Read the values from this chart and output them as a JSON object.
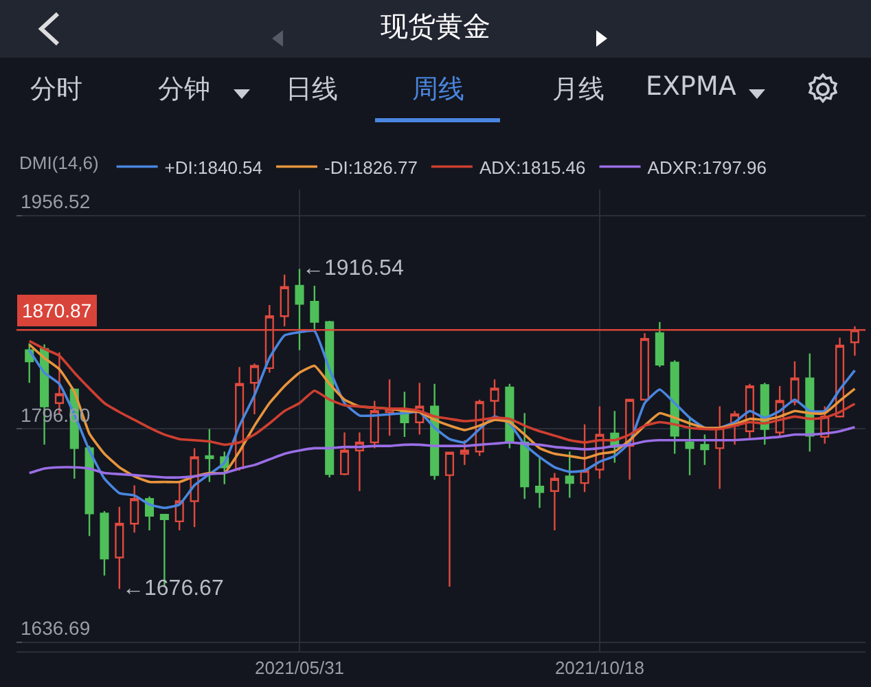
{
  "chart_data": {
    "type": "candlestick",
    "title": "现货黄金",
    "annotations": [
      "分时",
      "分钟",
      "日线",
      "周线",
      "月线",
      "EXPMA",
      {
        "text": "←1916.54",
        "x": "2021-05-31",
        "y": 1916.54
      },
      {
        "text": "←1676.67",
        "x": "2021-03-08",
        "y": 1676.67
      }
    ],
    "x": [
      "2021-01-25",
      "2021-02-01",
      "2021-02-08",
      "2021-02-15",
      "2021-02-22",
      "2021-03-01",
      "2021-03-08",
      "2021-03-15",
      "2021-03-22",
      "2021-03-29",
      "2021-04-05",
      "2021-04-12",
      "2021-04-19",
      "2021-04-26",
      "2021-05-03",
      "2021-05-10",
      "2021-05-17",
      "2021-05-24",
      "2021-05-31",
      "2021-06-07",
      "2021-06-14",
      "2021-06-21",
      "2021-06-28",
      "2021-07-05",
      "2021-07-12",
      "2021-07-19",
      "2021-07-26",
      "2021-08-02",
      "2021-08-09",
      "2021-08-16",
      "2021-08-23",
      "2021-08-30",
      "2021-09-06",
      "2021-09-13",
      "2021-09-20",
      "2021-09-27",
      "2021-10-04",
      "2021-10-11",
      "2021-10-18",
      "2021-10-25",
      "2021-11-01",
      "2021-11-08",
      "2021-11-15",
      "2021-11-22",
      "2021-11-29",
      "2021-12-06",
      "2021-12-13",
      "2021-12-20",
      "2021-12-27",
      "2022-01-03",
      "2022-01-10",
      "2022-01-17",
      "2022-01-24",
      "2022-01-31",
      "2022-02-07",
      "2022-02-14"
    ],
    "ohlc": [
      [
        1855.7,
        1860.8,
        1831.2,
        1847.3
      ],
      [
        1856.6,
        1860,
        1784.8,
        1813.5
      ],
      [
        1816.0,
        1854,
        1807.6,
        1822.8
      ],
      [
        1826.2,
        1827,
        1759.4,
        1782.2
      ],
      [
        1782.2,
        1784,
        1716.4,
        1733.3
      ],
      [
        1733.3,
        1735,
        1686.8,
        1699.5
      ],
      [
        1700.3,
        1738.3,
        1676.67,
        1725.6
      ],
      [
        1725.6,
        1754.4,
        1718.9,
        1744.2
      ],
      [
        1744.2,
        1746,
        1720.6,
        1731.6
      ],
      [
        1732.4,
        1733,
        1679.2,
        1729.0
      ],
      [
        1727.4,
        1756.9,
        1720.6,
        1742.5
      ],
      [
        1742.5,
        1782.2,
        1723.1,
        1775.5
      ],
      [
        1776.3,
        1796.6,
        1756.9,
        1774.6
      ],
      [
        1775.5,
        1779.7,
        1755.2,
        1767.9
      ],
      [
        1767.0,
        1843,
        1765.4,
        1830.4
      ],
      [
        1831.2,
        1845.6,
        1807.6,
        1843.9
      ],
      [
        1842.2,
        1889.5,
        1838.8,
        1881.1
      ],
      [
        1881.1,
        1912.3,
        1873.5,
        1903.0
      ],
      [
        1903.9,
        1916.54,
        1855.7,
        1890.4
      ],
      [
        1892.0,
        1903.9,
        1870.9,
        1876.8
      ],
      [
        1876.8,
        1877.7,
        1760.3,
        1762.8
      ],
      [
        1762.8,
        1794,
        1762,
        1780.5
      ],
      [
        1780.5,
        1794,
        1750.1,
        1786.5
      ],
      [
        1786.5,
        1817.7,
        1782.2,
        1810.1
      ],
      [
        1809.3,
        1833.8,
        1791.5,
        1811.8
      ],
      [
        1810.1,
        1824.5,
        1790.7,
        1801.6
      ],
      [
        1801.6,
        1831.2,
        1792.4,
        1813.5
      ],
      [
        1813.5,
        1830.4,
        1758.6,
        1762.0
      ],
      [
        1762.0,
        1779,
        1678.4,
        1778.9
      ],
      [
        1778.0,
        1788.2,
        1769.6,
        1780.5
      ],
      [
        1779.7,
        1818.6,
        1776.3,
        1816.9
      ],
      [
        1817.7,
        1833.8,
        1806.0,
        1827.0
      ],
      [
        1827.8,
        1830.4,
        1782.2,
        1786.5
      ],
      [
        1786.5,
        1808.5,
        1744.2,
        1753.5
      ],
      [
        1753.5,
        1775.5,
        1737.5,
        1749.3
      ],
      [
        1750.1,
        1763.6,
        1720.6,
        1759.4
      ],
      [
        1761.1,
        1779.7,
        1745.1,
        1756.1
      ],
      [
        1756.1,
        1800,
        1749.3,
        1765.4
      ],
      [
        1766.2,
        1813.5,
        1759.4,
        1792.4
      ],
      [
        1793.2,
        1810.1,
        1771.3,
        1783.1
      ],
      [
        1783.9,
        1819,
        1758.6,
        1818.6
      ],
      [
        1818.6,
        1868.4,
        1818,
        1864.2
      ],
      [
        1868.4,
        1876.8,
        1843,
        1844.8
      ],
      [
        1846.4,
        1848,
        1778.0,
        1791.5
      ],
      [
        1786.5,
        1806,
        1762.0,
        1782.2
      ],
      [
        1784.8,
        1792.4,
        1769.6,
        1781.4
      ],
      [
        1782.2,
        1813.5,
        1751.8,
        1797.5
      ],
      [
        1799.1,
        1810.1,
        1784.8,
        1807.6
      ],
      [
        1794.9,
        1830.4,
        1789.9,
        1828.7
      ],
      [
        1829.5,
        1831.2,
        1784.8,
        1796.6
      ],
      [
        1794,
        1828.7,
        1790.7,
        1817.7
      ],
      [
        1816.9,
        1847.3,
        1814.3,
        1834.6
      ],
      [
        1834.6,
        1853.2,
        1779.7,
        1791.5
      ],
      [
        1790.7,
        1813.5,
        1785.6,
        1806.0
      ],
      [
        1806.0,
        1865,
        1805.2,
        1859.1
      ],
      [
        1861.6,
        1873.5,
        1851.5,
        1870.87
      ]
    ],
    "series": [
      {
        "name": "+DI:1840.54",
        "type": "line",
        "color": "#4a86e0",
        "values": [
          1855.7,
          1838.8,
          1830.4,
          1807.6,
          1780.5,
          1759.4,
          1748.5,
          1746.8,
          1740.0,
          1737.5,
          1740.0,
          1754.4,
          1762.8,
          1771.3,
          1799.1,
          1821.9,
          1849.8,
          1866.7,
          1869.2,
          1870.1,
          1841.4,
          1816.0,
          1806.7,
          1806.7,
          1807.6,
          1808.4,
          1809.3,
          1797.5,
          1789.0,
          1786.5,
          1796.6,
          1805.9,
          1800.8,
          1784.8,
          1775.5,
          1767.9,
          1764.5,
          1765.4,
          1772.1,
          1776.3,
          1786.5,
          1816.0,
          1826.2,
          1816.0,
          1805.0,
          1797.5,
          1797.5,
          1801.7,
          1810.1,
          1805.0,
          1810.1,
          1818.6,
          1810.1,
          1810.1,
          1826.2,
          1840.54
        ]
      },
      {
        "name": "-DI:1826.77",
        "type": "line",
        "color": "#e8953c",
        "values": [
          1859.9,
          1849.8,
          1841.4,
          1824.5,
          1793.2,
          1778.0,
          1767.9,
          1761.1,
          1756.9,
          1756.9,
          1756.9,
          1761.1,
          1763.6,
          1763.6,
          1779.7,
          1799.1,
          1816.0,
          1828.7,
          1838.8,
          1843.9,
          1830.4,
          1818.6,
          1813.5,
          1812.6,
          1811.8,
          1810.1,
          1809.3,
          1803.4,
          1799.1,
          1795.8,
          1799.1,
          1803.4,
          1801.7,
          1792.4,
          1782.2,
          1778.0,
          1776.3,
          1774.6,
          1778.0,
          1779.7,
          1788.2,
          1799.1,
          1808.4,
          1805.0,
          1800.8,
          1797.5,
          1797.5,
          1800.0,
          1804.2,
          1803.4,
          1805.9,
          1810.1,
          1808.4,
          1808.4,
          1817.7,
          1826.77
        ]
      },
      {
        "name": "ADX:1815.46",
        "type": "line",
        "color": "#cf3f30",
        "values": [
          1862.5,
          1856.6,
          1851.5,
          1838.8,
          1827.0,
          1816.0,
          1809.3,
          1803.4,
          1797.5,
          1792.4,
          1789.0,
          1788.2,
          1787.3,
          1784.8,
          1786.5,
          1792.4,
          1800.8,
          1810.1,
          1816.0,
          1825.3,
          1818.6,
          1814.3,
          1813.5,
          1812.6,
          1811.8,
          1811.8,
          1810.1,
          1805.9,
          1804.2,
          1802.5,
          1803.4,
          1805.0,
          1804.2,
          1799.1,
          1794.9,
          1791.6,
          1788.2,
          1786.5,
          1788.2,
          1788.2,
          1792.4,
          1799.1,
          1801.7,
          1800.0,
          1797.5,
          1796.6,
          1796.6,
          1799.1,
          1801.7,
          1800.8,
          1803.4,
          1805.9,
          1804.2,
          1805.0,
          1809.3,
          1815.46
        ]
      },
      {
        "name": "ADXR:1797.96",
        "type": "line",
        "color": "#9a6ee6",
        "values": [
          1763.6,
          1767.0,
          1767.9,
          1767.9,
          1767.0,
          1763.6,
          1762.8,
          1762.0,
          1761.1,
          1760.3,
          1760.3,
          1761.1,
          1762.8,
          1763.6,
          1767.0,
          1769.6,
          1773.8,
          1778.0,
          1780.5,
          1782.2,
          1782.2,
          1783.1,
          1783.1,
          1783.9,
          1783.9,
          1784.8,
          1784.8,
          1783.9,
          1783.9,
          1783.9,
          1784.8,
          1785.6,
          1786.5,
          1785.6,
          1784.8,
          1783.1,
          1782.2,
          1781.4,
          1782.2,
          1783.9,
          1784.8,
          1787.3,
          1788.2,
          1788.2,
          1788.2,
          1788.2,
          1788.2,
          1788.2,
          1789.0,
          1789.8,
          1790.7,
          1792.4,
          1792.4,
          1793.2,
          1794.9,
          1797.96
        ]
      }
    ],
    "legend_title": "DMI(14,6)",
    "legend": "top left",
    "ylim": [
      1630,
      1976
    ],
    "yticks": [
      1636.69,
      {
        "value": 1796.6,
        "label": "1796.60"
      },
      1956.52
    ],
    "xlim": [
      "2021-01-19",
      "2022-02-19"
    ],
    "xticks": [
      {
        "value": "2021-05-31",
        "label": "2021/05/31"
      },
      {
        "value": "2021-10-18",
        "label": "2021/10/18"
      }
    ],
    "grid": true,
    "ref_lines": [
      {
        "axis": "y",
        "value": 1870.87,
        "label": "1870.87",
        "color": "#d9443a"
      }
    ]
  }
}
